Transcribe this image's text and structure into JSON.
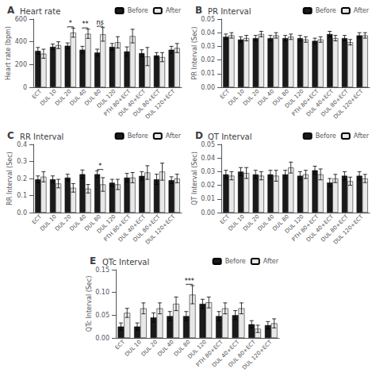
{
  "chart_data": [
    {
      "type": "bar",
      "panel_label": "A",
      "title": "Heart rate",
      "ylabel": "Heart rate (bpm)",
      "categories": [
        "ECT",
        "DUL 10",
        "DUL 20",
        "DUL 40",
        "DUL 80",
        "DUL 120",
        "PTH 80+ECT",
        "DUL 40+ECT",
        "DUL 80+ECT",
        "DUL 120+ECT"
      ],
      "series": [
        {
          "name": "Before",
          "color": "#1a1a1a",
          "values": [
            320,
            355,
            365,
            330,
            305,
            355,
            315,
            300,
            280,
            330
          ],
          "errors": [
            30,
            25,
            25,
            30,
            30,
            30,
            40,
            30,
            25,
            30
          ]
        },
        {
          "name": "After",
          "color": "#e8e8e8",
          "values": [
            295,
            370,
            480,
            470,
            465,
            395,
            450,
            270,
            265,
            345
          ],
          "errors": [
            40,
            30,
            40,
            40,
            60,
            50,
            60,
            80,
            40,
            40
          ]
        }
      ],
      "ylim": [
        0,
        600
      ],
      "yticks": [
        0,
        200,
        400,
        600
      ],
      "annotations": [
        {
          "x": "DUL 20",
          "text": "*"
        },
        {
          "x": "DUL 40",
          "text": "**"
        },
        {
          "x": "DUL 80",
          "text": "ns"
        }
      ],
      "legend": "upper right",
      "grid": false
    },
    {
      "type": "bar",
      "panel_label": "B",
      "title": "PR Interval",
      "ylabel": "PR Interval (Sec)",
      "categories": [
        "ECT",
        "DUL 10",
        "DUL 20",
        "DUL 40",
        "DUL 80",
        "DUL 120",
        "PTH 80+ECT",
        "DUL 40+ECT",
        "DUL 80+ECT",
        "DUL 120+ECT"
      ],
      "series": [
        {
          "name": "Before",
          "color": "#1a1a1a",
          "values": [
            0.037,
            0.035,
            0.036,
            0.036,
            0.036,
            0.036,
            0.034,
            0.039,
            0.036,
            0.038
          ],
          "errors": [
            0.002,
            0.002,
            0.002,
            0.002,
            0.002,
            0.002,
            0.002,
            0.002,
            0.002,
            0.002
          ]
        },
        {
          "name": "After",
          "color": "#e8e8e8",
          "values": [
            0.038,
            0.036,
            0.039,
            0.038,
            0.037,
            0.035,
            0.035,
            0.036,
            0.033,
            0.038
          ],
          "errors": [
            0.002,
            0.002,
            0.002,
            0.002,
            0.002,
            0.002,
            0.002,
            0.002,
            0.002,
            0.002
          ]
        }
      ],
      "ylim": [
        0,
        0.05
      ],
      "yticks": [
        {
          "value": 0,
          "label": "0.00"
        },
        0.01,
        0.02,
        0.03,
        0.04,
        0.05
      ],
      "annotations": [],
      "legend": "upper right",
      "grid": false
    },
    {
      "type": "bar",
      "panel_label": "C",
      "title": "RR Interval",
      "ylabel": "RR Interval (Sec)",
      "categories": [
        "ECT",
        "DUL 10",
        "DUL 20",
        "DUL 40",
        "DUL 80",
        "DUL 120",
        "PTH 80+ECT",
        "DUL 40+ECT",
        "DUL 80+ECT",
        "DUL 120+ECT"
      ],
      "series": [
        {
          "name": "Before",
          "color": "#1a1a1a",
          "values": [
            0.195,
            0.195,
            0.205,
            0.225,
            0.225,
            0.175,
            0.205,
            0.215,
            0.195,
            0.19
          ],
          "errors": [
            0.02,
            0.02,
            0.02,
            0.025,
            0.02,
            0.02,
            0.025,
            0.025,
            0.03,
            0.02
          ]
        },
        {
          "name": "After",
          "color": "#e8e8e8",
          "values": [
            0.21,
            0.17,
            0.145,
            0.14,
            0.165,
            0.165,
            0.205,
            0.235,
            0.24,
            0.2
          ],
          "errors": [
            0.03,
            0.025,
            0.025,
            0.025,
            0.04,
            0.03,
            0.03,
            0.04,
            0.05,
            0.025
          ]
        }
      ],
      "ylim": [
        0,
        0.4
      ],
      "yticks": [
        {
          "value": 0,
          "label": "0.0"
        },
        0.1,
        0.2,
        0.3,
        0.4
      ],
      "annotations": [
        {
          "x": "DUL 80",
          "text": "*"
        }
      ],
      "legend": "upper right",
      "grid": false
    },
    {
      "type": "bar",
      "panel_label": "D",
      "title": "QT Interval",
      "ylabel": "QT Interval (Sec)",
      "categories": [
        "ECT",
        "DUL 10",
        "DUL 20",
        "DUL 40",
        "DUL 80",
        "DUL 120",
        "PTH 80+ECT",
        "DUL 40+ECT",
        "DUL 80+ECT",
        "DUL 120+ECT"
      ],
      "series": [
        {
          "name": "Before",
          "color": "#1a1a1a",
          "values": [
            0.028,
            0.03,
            0.028,
            0.028,
            0.028,
            0.027,
            0.031,
            0.022,
            0.027,
            0.027
          ],
          "errors": [
            0.003,
            0.003,
            0.003,
            0.003,
            0.003,
            0.003,
            0.003,
            0.003,
            0.003,
            0.003
          ]
        },
        {
          "name": "After",
          "color": "#e8e8e8",
          "values": [
            0.027,
            0.029,
            0.027,
            0.027,
            0.033,
            0.028,
            0.028,
            0.025,
            0.023,
            0.025
          ],
          "errors": [
            0.003,
            0.004,
            0.003,
            0.004,
            0.004,
            0.003,
            0.004,
            0.003,
            0.003,
            0.003
          ]
        }
      ],
      "ylim": [
        0,
        0.05
      ],
      "yticks": [
        {
          "value": 0,
          "label": "0.00"
        },
        0.01,
        0.02,
        0.03,
        0.04,
        0.05
      ],
      "annotations": [],
      "legend": "upper right",
      "grid": false
    },
    {
      "type": "bar",
      "panel_label": "E",
      "title": "QTc Interval",
      "ylabel": "QTc Interval (Sec)",
      "categories": [
        "ECT",
        "DUL 10",
        "DUL 20",
        "DUL 40",
        "DUL 80",
        "DUL 120",
        "PTH 80+ECT",
        "DUL 40+ECT",
        "DUL 80+ECT",
        "DUL 120+ECT"
      ],
      "series": [
        {
          "name": "Before",
          "color": "#1a1a1a",
          "values": [
            0.025,
            0.025,
            0.045,
            0.048,
            0.048,
            0.075,
            0.048,
            0.05,
            0.03,
            0.028
          ],
          "errors": [
            0.008,
            0.008,
            0.01,
            0.01,
            0.01,
            0.01,
            0.01,
            0.01,
            0.008,
            0.008
          ]
        },
        {
          "name": "After",
          "color": "#e8e8e8",
          "values": [
            0.055,
            0.065,
            0.065,
            0.075,
            0.095,
            0.078,
            0.065,
            0.065,
            0.02,
            0.032
          ],
          "errors": [
            0.01,
            0.012,
            0.012,
            0.015,
            0.02,
            0.012,
            0.012,
            0.012,
            0.008,
            0.01
          ]
        }
      ],
      "ylim": [
        0,
        0.15
      ],
      "yticks": [
        {
          "value": 0,
          "label": "0.00"
        },
        0.05,
        {
          "value": 0.1,
          "label": "0.10"
        },
        0.15
      ],
      "annotations": [
        {
          "x": "DUL 80",
          "text": "***"
        }
      ],
      "legend": "upper right",
      "grid": false
    }
  ]
}
